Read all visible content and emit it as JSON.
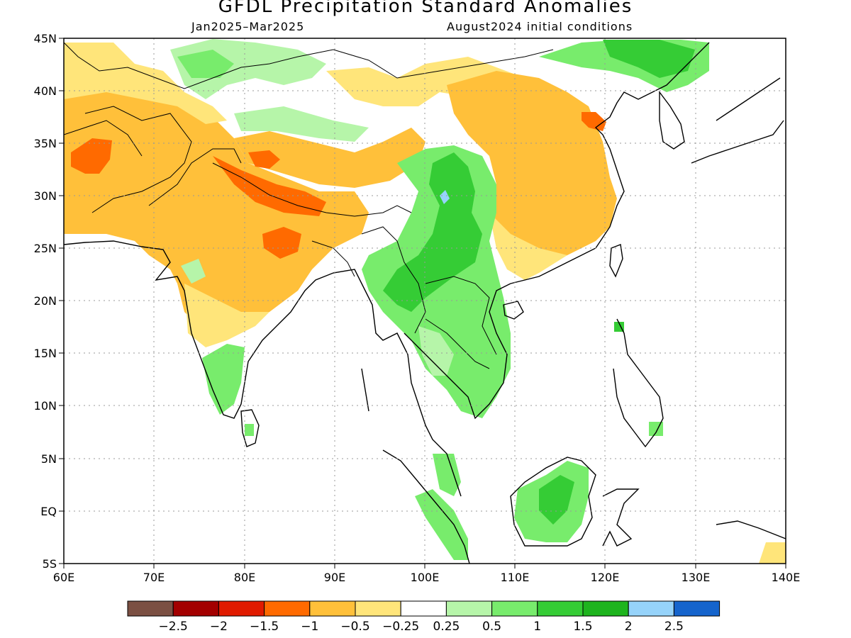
{
  "header": {
    "title": "GFDL Precipitation Standard Anomalies",
    "period": "Jan2025–Mar2025",
    "init": "August2024 initial conditions"
  },
  "map": {
    "lon_labels": [
      "60E",
      "70E",
      "80E",
      "90E",
      "100E",
      "110E",
      "120E",
      "130E",
      "140E"
    ],
    "lat_labels": [
      "45N",
      "40N",
      "35N",
      "30N",
      "25N",
      "20N",
      "15N",
      "10N",
      "5N",
      "EQ",
      "5S"
    ],
    "lon_range": [
      60,
      140
    ],
    "lat_range": [
      -5,
      45
    ],
    "gridlines": "dotted"
  },
  "colorbar": {
    "colors": [
      "#7b5043",
      "#a30000",
      "#e01b00",
      "#ff6a00",
      "#ffc03a",
      "#ffe57a",
      "#ffffff",
      "#b6f5a9",
      "#78ec6c",
      "#35cc35",
      "#1eb41e",
      "#96d3fa",
      "#1564cc"
    ],
    "labels": [
      "−2.5",
      "−2",
      "−1.5",
      "−1",
      "−0.5",
      "−0.25",
      "0.25",
      "0.5",
      "1",
      "1.5",
      "2",
      "2.5"
    ]
  },
  "legend_colors": {
    "strong_dry": "#ff6a00",
    "dry": "#ffc03a",
    "slight_dry": "#ffe57a",
    "slight_wet": "#b6f5a9",
    "wet": "#78ec6c",
    "very_wet": "#35cc35",
    "extreme_wet": "#96d3fa"
  }
}
